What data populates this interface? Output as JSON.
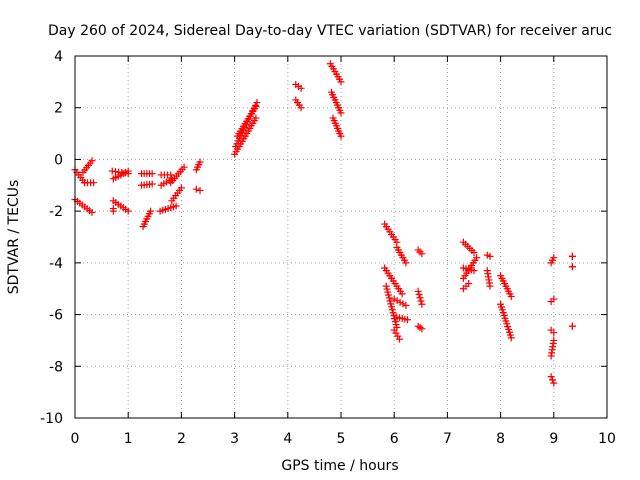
{
  "chart_data": {
    "type": "scatter",
    "title": "Day 260 of 2024, Sidereal Day-to-day VTEC variation (SDTVAR) for receiver aruc",
    "xlabel": "GPS time / hours",
    "ylabel": "SDTVAR / TECUs",
    "xlim": [
      0,
      10
    ],
    "ylim": [
      -10,
      4
    ],
    "xticks": [
      "0",
      "1",
      "2",
      "3",
      "4",
      "5",
      "6",
      "7",
      "8",
      "9",
      "10"
    ],
    "yticks": [
      "4",
      "2",
      "0",
      "-2",
      "-4",
      "-6",
      "-8",
      "-10"
    ],
    "grid": true,
    "marker": "+",
    "color": "#ff0000",
    "segments": [
      {
        "x0": 0.0,
        "x1": 0.18,
        "y0": -0.4,
        "y1": -0.9
      },
      {
        "x0": 0.15,
        "x1": 0.32,
        "y0": -0.5,
        "y1": -0.05
      },
      {
        "x0": 0.18,
        "x1": 0.35,
        "y0": -0.9,
        "y1": -0.9
      },
      {
        "x0": 0.0,
        "x1": 0.32,
        "y0": -1.55,
        "y1": -2.05
      },
      {
        "x0": 0.7,
        "x1": 1.0,
        "y0": -0.45,
        "y1": -0.55
      },
      {
        "x0": 0.72,
        "x1": 1.0,
        "y0": -0.75,
        "y1": -0.45
      },
      {
        "x0": 0.72,
        "x1": 1.0,
        "y0": -1.6,
        "y1": -2.0
      },
      {
        "x0": 0.72,
        "x1": 0.72,
        "y0": -1.9,
        "y1": -2.0
      },
      {
        "x0": 1.25,
        "x1": 1.45,
        "y0": -0.55,
        "y1": -0.55
      },
      {
        "x0": 1.25,
        "x1": 1.45,
        "y0": -1.0,
        "y1": -0.95
      },
      {
        "x0": 1.28,
        "x1": 1.42,
        "y0": -2.6,
        "y1": -2.0
      },
      {
        "x0": 1.62,
        "x1": 1.8,
        "y0": -0.6,
        "y1": -0.6
      },
      {
        "x0": 1.62,
        "x1": 1.82,
        "y0": -1.0,
        "y1": -0.75
      },
      {
        "x0": 1.6,
        "x1": 1.9,
        "y0": -2.0,
        "y1": -1.8
      },
      {
        "x0": 1.8,
        "x1": 2.05,
        "y0": -0.9,
        "y1": -0.3
      },
      {
        "x0": 1.82,
        "x1": 2.0,
        "y0": -1.6,
        "y1": -1.1
      },
      {
        "x0": 2.28,
        "x1": 2.35,
        "y0": -0.4,
        "y1": -0.1
      },
      {
        "x0": 2.28,
        "x1": 2.35,
        "y0": -1.15,
        "y1": -1.2
      },
      {
        "x0": 3.0,
        "x1": 3.4,
        "y0": 0.2,
        "y1": 1.6
      },
      {
        "x0": 3.02,
        "x1": 3.42,
        "y0": 0.5,
        "y1": 2.2
      },
      {
        "x0": 3.05,
        "x1": 3.4,
        "y0": 0.9,
        "y1": 2.05
      },
      {
        "x0": 4.15,
        "x1": 4.25,
        "y0": 2.9,
        "y1": 2.75
      },
      {
        "x0": 4.15,
        "x1": 4.25,
        "y0": 2.3,
        "y1": 2.0
      },
      {
        "x0": 4.8,
        "x1": 5.0,
        "y0": 3.7,
        "y1": 3.0
      },
      {
        "x0": 4.82,
        "x1": 5.0,
        "y0": 2.6,
        "y1": 1.8
      },
      {
        "x0": 4.85,
        "x1": 5.0,
        "y0": 1.6,
        "y1": 0.9
      },
      {
        "x0": 5.82,
        "x1": 6.05,
        "y0": -2.5,
        "y1": -3.2
      },
      {
        "x0": 6.05,
        "x1": 6.22,
        "y0": -3.4,
        "y1": -4.0
      },
      {
        "x0": 5.82,
        "x1": 5.95,
        "y0": -4.2,
        "y1": -4.6
      },
      {
        "x0": 5.85,
        "x1": 6.05,
        "y0": -4.9,
        "y1": -6.5
      },
      {
        "x0": 6.0,
        "x1": 6.1,
        "y0": -6.6,
        "y1": -6.95
      },
      {
        "x0": 6.05,
        "x1": 6.25,
        "y0": -6.1,
        "y1": -6.2
      },
      {
        "x0": 6.0,
        "x1": 6.22,
        "y0": -5.4,
        "y1": -5.65
      },
      {
        "x0": 5.95,
        "x1": 6.15,
        "y0": -4.6,
        "y1": -5.2
      },
      {
        "x0": 6.45,
        "x1": 6.52,
        "y0": -3.5,
        "y1": -3.65
      },
      {
        "x0": 6.45,
        "x1": 6.52,
        "y0": -5.1,
        "y1": -5.6
      },
      {
        "x0": 6.45,
        "x1": 6.52,
        "y0": -6.45,
        "y1": -6.55
      },
      {
        "x0": 7.3,
        "x1": 7.5,
        "y0": -3.2,
        "y1": -3.6
      },
      {
        "x0": 7.3,
        "x1": 7.5,
        "y0": -4.2,
        "y1": -4.3
      },
      {
        "x0": 7.3,
        "x1": 7.55,
        "y0": -4.6,
        "y1": -3.8
      },
      {
        "x0": 7.3,
        "x1": 7.4,
        "y0": -5.0,
        "y1": -4.8
      },
      {
        "x0": 7.75,
        "x1": 7.8,
        "y0": -3.7,
        "y1": -3.75
      },
      {
        "x0": 7.75,
        "x1": 7.8,
        "y0": -4.3,
        "y1": -4.9
      },
      {
        "x0": 8.0,
        "x1": 8.2,
        "y0": -4.5,
        "y1": -5.3
      },
      {
        "x0": 8.0,
        "x1": 8.2,
        "y0": -5.6,
        "y1": -6.9
      },
      {
        "x0": 8.95,
        "x1": 9.0,
        "y0": -4.0,
        "y1": -3.8
      },
      {
        "x0": 8.95,
        "x1": 9.0,
        "y0": -5.5,
        "y1": -5.4
      },
      {
        "x0": 8.95,
        "x1": 9.0,
        "y0": -6.6,
        "y1": -6.7
      },
      {
        "x0": 8.95,
        "x1": 9.0,
        "y0": -7.6,
        "y1": -7.0
      },
      {
        "x0": 8.95,
        "x1": 9.0,
        "y0": -8.4,
        "y1": -8.65
      },
      {
        "x0": 9.35,
        "x1": 9.35,
        "y0": -3.75,
        "y1": -3.75
      },
      {
        "x0": 9.35,
        "x1": 9.35,
        "y0": -4.15,
        "y1": -4.15
      },
      {
        "x0": 9.35,
        "x1": 9.35,
        "y0": -6.45,
        "y1": -6.45
      }
    ]
  }
}
